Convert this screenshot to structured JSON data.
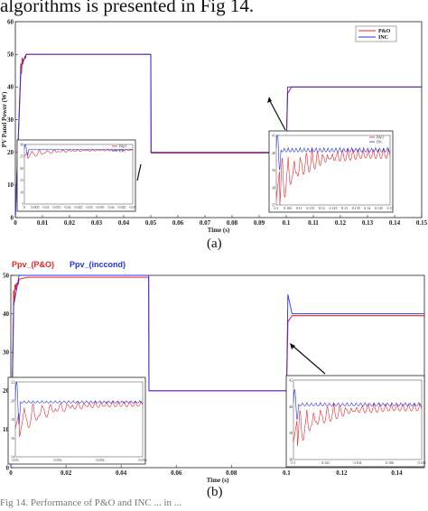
{
  "caption_top": "algorithms is presented in Fig 14.",
  "caption_bottom": "Fig 14. Performance of P&O and INC ... in ...",
  "figure_a": {
    "label": "(a)",
    "colors": {
      "po": "#e8262b",
      "inc": "#2233dd"
    }
  },
  "figure_b": {
    "label": "(b)",
    "colors": {
      "po": "#e8262b",
      "inc": "#2233ee"
    }
  },
  "chart_data": [
    {
      "type": "line",
      "id": "a",
      "ylabel": "PV Panel Power (W)",
      "xlabel": "Time (s)",
      "xlim": [
        0,
        0.15
      ],
      "ylim": [
        0,
        60
      ],
      "xticks": [
        "0",
        "0.01",
        "0.02",
        "0.03",
        "0.04",
        "0.05",
        "0.06",
        "0.07",
        "0.08",
        "0.09",
        "0.1",
        "0.11",
        "0.12",
        "0.13",
        "0.14",
        "0.15"
      ],
      "yticks": [
        "0",
        "10",
        "20",
        "30",
        "40",
        "50",
        "60"
      ],
      "legend": [
        "P&O",
        "INC"
      ],
      "legend_position": "top-right",
      "grid": false,
      "series": [
        {
          "name": "P&O",
          "x": [
            0,
            0.002,
            0.004,
            0.006,
            0.05,
            0.0501,
            0.1,
            0.1005,
            0.102,
            0.15
          ],
          "y": [
            0,
            44,
            50,
            50,
            50,
            19.8,
            19.8,
            38,
            40,
            40
          ]
        },
        {
          "name": "INC",
          "x": [
            0,
            0.002,
            0.004,
            0.006,
            0.05,
            0.0501,
            0.1,
            0.1005,
            0.102,
            0.15
          ],
          "y": [
            0,
            46,
            50,
            50,
            50,
            20,
            20,
            40,
            40,
            40
          ]
        }
      ],
      "insets": [
        {
          "region": "steady state near 50 W",
          "xticks": [
            "0",
            "0.005",
            "0.01",
            "0.015",
            "0.02",
            "0.025",
            "0.03",
            "0.035",
            "0.04",
            "0.045",
            "0.05"
          ]
        },
        {
          "region": "steady state near 40 W",
          "xticks": [
            "0.1",
            "0.105",
            "0.11",
            "0.115",
            "0.12",
            "0.125",
            "0.13",
            "0.135",
            "0.14",
            "0.145",
            "0.15"
          ]
        }
      ]
    },
    {
      "type": "line",
      "id": "b",
      "xlabel": "Time (s)",
      "xlim": [
        0,
        0.15
      ],
      "ylim": [
        0,
        50
      ],
      "xticks": [
        "0",
        "0.02",
        "0.04",
        "0.06",
        "0.08",
        "0.1",
        "0.12",
        "0.14"
      ],
      "yticks": [
        "0",
        "10",
        "20",
        "30",
        "40",
        "50"
      ],
      "legend": [
        "Ppv_(P&O)",
        "Ppv_(inccond)"
      ],
      "legend_position": "top-left",
      "grid": false,
      "series": [
        {
          "name": "Ppv_(P&O)",
          "x": [
            0,
            0.001,
            0.003,
            0.006,
            0.05,
            0.0501,
            0.1,
            0.1005,
            0.102,
            0.15
          ],
          "y": [
            0,
            40,
            49,
            49.5,
            49.5,
            20,
            20,
            38,
            39.5,
            39.5
          ]
        },
        {
          "name": "Ppv_(inccond)",
          "x": [
            0,
            0.001,
            0.003,
            0.006,
            0.05,
            0.0501,
            0.1,
            0.1005,
            0.102,
            0.15
          ],
          "y": [
            0,
            42,
            50,
            50,
            50,
            20,
            20,
            45,
            40,
            40
          ]
        }
      ],
      "insets": [
        {
          "region": "steady state near 50 W",
          "xticks": [
            "0.05",
            "0.02",
            "0.04",
            "0.06"
          ]
        },
        {
          "region": "steady state near 40 W",
          "xticks": [
            "0.1",
            "0.12",
            "0.14"
          ]
        }
      ]
    }
  ]
}
